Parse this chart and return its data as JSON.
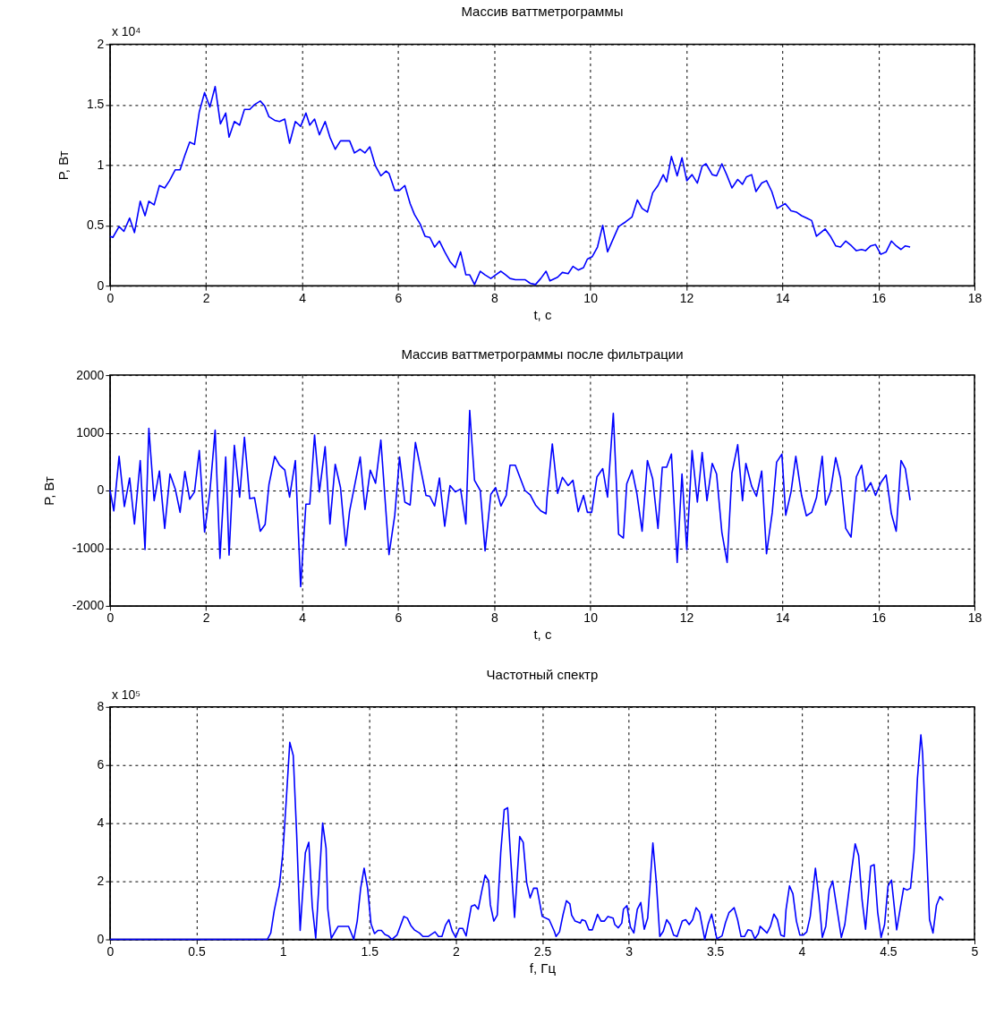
{
  "chart_data": [
    {
      "type": "line",
      "title": "Массив ваттметрограммы",
      "xlabel": "t, с",
      "ylabel": "P, Вт",
      "annotations": [
        "x 10⁴"
      ],
      "grid": true,
      "xlim": [
        0,
        18
      ],
      "xticks": [
        0,
        2,
        4,
        6,
        8,
        10,
        12,
        14,
        16,
        18
      ],
      "ylim": [
        0,
        2
      ],
      "yticks": [
        0,
        0.5,
        1,
        1.5,
        2
      ],
      "x": [
        0,
        0.06,
        0.19,
        0.29,
        0.41,
        0.51,
        0.63,
        0.73,
        0.81,
        0.92,
        1.03,
        1.14,
        1.24,
        1.36,
        1.46,
        1.56,
        1.66,
        1.76,
        1.86,
        1.97,
        2.08,
        2.19,
        2.3,
        2.41,
        2.48,
        2.59,
        2.7,
        2.8,
        2.91,
        3.01,
        3.13,
        3.22,
        3.31,
        3.43,
        3.53,
        3.64,
        3.74,
        3.86,
        3.97,
        4.08,
        4.16,
        4.26,
        4.36,
        4.48,
        4.58,
        4.69,
        4.8,
        4.99,
        5.09,
        5.21,
        5.31,
        5.41,
        5.53,
        5.64,
        5.75,
        5.81,
        5.93,
        6.03,
        6.14,
        6.25,
        6.34,
        6.46,
        6.56,
        6.66,
        6.76,
        6.86,
        6.97,
        7.08,
        7.19,
        7.3,
        7.41,
        7.49,
        7.59,
        7.71,
        7.81,
        7.93,
        8.03,
        8.14,
        8.24,
        8.33,
        8.44,
        8.64,
        8.75,
        8.86,
        8.97,
        9.08,
        9.16,
        9.32,
        9.42,
        9.54,
        9.64,
        9.75,
        9.86,
        9.94,
        10.04,
        10.15,
        10.26,
        10.36,
        10.48,
        10.59,
        10.74,
        10.87,
        10.98,
        11.08,
        11.19,
        11.3,
        11.41,
        11.52,
        11.59,
        11.69,
        11.81,
        11.91,
        12.01,
        12.12,
        12.23,
        12.33,
        12.41,
        12.54,
        12.63,
        12.74,
        12.84,
        12.95,
        13.07,
        13.17,
        13.25,
        13.36,
        13.45,
        13.57,
        13.67,
        13.78,
        13.89,
        14.06,
        14.18,
        14.29,
        14.4,
        14.51,
        14.61,
        14.71,
        14.89,
        15.0,
        15.11,
        15.21,
        15.32,
        15.44,
        15.54,
        15.65,
        15.73,
        15.84,
        15.94,
        16.05,
        16.16,
        16.27,
        16.37,
        16.47,
        16.56,
        16.66
      ],
      "series": [
        {
          "color": "#0000ff",
          "values": [
            0.41,
            0.4,
            0.49,
            0.45,
            0.56,
            0.44,
            0.7,
            0.58,
            0.7,
            0.67,
            0.83,
            0.81,
            0.87,
            0.96,
            0.96,
            1.08,
            1.19,
            1.17,
            1.44,
            1.6,
            1.48,
            1.65,
            1.34,
            1.43,
            1.23,
            1.36,
            1.33,
            1.46,
            1.46,
            1.5,
            1.53,
            1.49,
            1.4,
            1.37,
            1.36,
            1.38,
            1.18,
            1.36,
            1.32,
            1.43,
            1.33,
            1.38,
            1.25,
            1.36,
            1.23,
            1.13,
            1.2,
            1.2,
            1.1,
            1.13,
            1.1,
            1.15,
            0.99,
            0.91,
            0.95,
            0.93,
            0.79,
            0.79,
            0.83,
            0.68,
            0.59,
            0.51,
            0.41,
            0.4,
            0.32,
            0.37,
            0.28,
            0.2,
            0.15,
            0.28,
            0.09,
            0.09,
            0.01,
            0.12,
            0.09,
            0.06,
            0.09,
            0.12,
            0.09,
            0.06,
            0.05,
            0.05,
            0.02,
            0.01,
            0.06,
            0.12,
            0.04,
            0.07,
            0.11,
            0.1,
            0.16,
            0.13,
            0.15,
            0.22,
            0.24,
            0.32,
            0.5,
            0.28,
            0.39,
            0.49,
            0.53,
            0.57,
            0.71,
            0.64,
            0.61,
            0.77,
            0.83,
            0.92,
            0.86,
            1.07,
            0.91,
            1.06,
            0.87,
            0.92,
            0.85,
            0.99,
            1.01,
            0.92,
            0.91,
            1.01,
            0.92,
            0.81,
            0.88,
            0.84,
            0.9,
            0.92,
            0.78,
            0.85,
            0.87,
            0.78,
            0.64,
            0.68,
            0.62,
            0.61,
            0.58,
            0.56,
            0.54,
            0.41,
            0.47,
            0.41,
            0.33,
            0.32,
            0.37,
            0.33,
            0.29,
            0.3,
            0.29,
            0.33,
            0.34,
            0.26,
            0.28,
            0.37,
            0.33,
            0.3,
            0.33,
            0.32
          ]
        }
      ]
    },
    {
      "type": "line",
      "title": "Массив ваттметрограммы после фильтрации",
      "xlabel": "t, с",
      "ylabel": "P, Вт",
      "grid": true,
      "xlim": [
        0,
        18
      ],
      "xticks": [
        0,
        2,
        4,
        6,
        8,
        10,
        12,
        14,
        16,
        18
      ],
      "ylim": [
        -2000,
        2000
      ],
      "yticks": [
        -2000,
        -1000,
        0,
        1000,
        2000
      ],
      "x": [
        0,
        0.08,
        0.19,
        0.3,
        0.41,
        0.51,
        0.63,
        0.73,
        0.81,
        0.92,
        1.03,
        1.14,
        1.25,
        1.36,
        1.46,
        1.56,
        1.66,
        1.76,
        1.86,
        1.97,
        2.08,
        2.19,
        2.29,
        2.41,
        2.48,
        2.59,
        2.7,
        2.8,
        2.91,
        3.01,
        3.13,
        3.23,
        3.31,
        3.43,
        3.53,
        3.64,
        3.74,
        3.86,
        3.97,
        4.08,
        4.16,
        4.26,
        4.36,
        4.48,
        4.58,
        4.69,
        4.8,
        4.91,
        4.99,
        5.21,
        5.31,
        5.42,
        5.53,
        5.64,
        5.81,
        5.93,
        6.03,
        6.14,
        6.25,
        6.36,
        6.58,
        6.66,
        6.76,
        6.86,
        6.97,
        7.08,
        7.19,
        7.3,
        7.41,
        7.49,
        7.59,
        7.71,
        7.81,
        7.93,
        8.03,
        8.14,
        8.25,
        8.33,
        8.44,
        8.64,
        8.75,
        8.86,
        8.97,
        9.08,
        9.1,
        9.21,
        9.32,
        9.42,
        9.54,
        9.64,
        9.75,
        9.86,
        9.94,
        10.03,
        10.14,
        10.26,
        10.36,
        10.48,
        10.59,
        10.69,
        10.76,
        10.87,
        10.97,
        11.08,
        11.19,
        11.3,
        11.41,
        11.5,
        11.59,
        11.69,
        11.81,
        11.91,
        12.01,
        12.12,
        12.23,
        12.33,
        12.43,
        12.54,
        12.63,
        12.74,
        12.85,
        12.95,
        13.07,
        13.17,
        13.24,
        13.36,
        13.46,
        13.57,
        13.67,
        13.79,
        13.88,
        13.99,
        14.07,
        14.18,
        14.28,
        14.4,
        14.5,
        14.61,
        14.71,
        14.83,
        14.9,
        15.0,
        15.11,
        15.21,
        15.32,
        15.43,
        15.54,
        15.65,
        15.73,
        15.84,
        15.94,
        16.05,
        16.16,
        16.27,
        16.37,
        16.47,
        16.56,
        16.66
      ],
      "series": [
        {
          "color": "#0000ff",
          "values": [
            15,
            -354,
            591,
            -278,
            217,
            -581,
            520,
            -1025,
            1076,
            -177,
            338,
            -657,
            288,
            25,
            -379,
            328,
            -152,
            -25,
            692,
            -722,
            -25,
            1045,
            -1177,
            581,
            -1121,
            783,
            -116,
            924,
            -141,
            -126,
            -707,
            -591,
            101,
            591,
            439,
            354,
            -116,
            520,
            -1667,
            -237,
            -237,
            960,
            -25,
            758,
            -581,
            455,
            50,
            -960,
            -354,
            581,
            -328,
            354,
            126,
            874,
            -1111,
            -429,
            581,
            -202,
            -252,
            833,
            -86,
            -101,
            -268,
            217,
            -621,
            86,
            -25,
            25,
            -581,
            1389,
            177,
            0,
            -1045,
            -66,
            50,
            -268,
            -86,
            439,
            439,
            0,
            -76,
            -252,
            -354,
            -404,
            -126,
            808,
            -50,
            227,
            86,
            177,
            -369,
            -86,
            -379,
            -379,
            237,
            379,
            -116,
            1338,
            -758,
            -823,
            116,
            354,
            -50,
            -707,
            520,
            202,
            -657,
            404,
            404,
            631,
            -1247,
            288,
            -1025,
            692,
            -202,
            657,
            -177,
            470,
            288,
            -722,
            -1247,
            303,
            793,
            -177,
            470,
            76,
            -101,
            338,
            -1096,
            -379,
            490,
            631,
            -429,
            -25,
            591,
            -86,
            -439,
            -379,
            -126,
            591,
            -252,
            -25,
            571,
            217,
            -657,
            -808,
            237,
            439,
            -15,
            136,
            -86,
            136,
            268,
            -404,
            -707,
            520,
            379,
            -167
          ]
        }
      ]
    },
    {
      "type": "line",
      "title": "Частотный спектр",
      "xlabel": "f, Гц",
      "annotations": [
        "x 10⁵"
      ],
      "grid": true,
      "xlim": [
        0,
        5
      ],
      "xticks": [
        0,
        0.5,
        1,
        1.5,
        2,
        2.5,
        3,
        3.5,
        4,
        4.5,
        5
      ],
      "ylim": [
        0,
        8
      ],
      "yticks": [
        0,
        2,
        4,
        6,
        8
      ],
      "x": [
        0,
        0.91,
        0.93,
        0.95,
        0.98,
        1.0,
        1.02,
        1.04,
        1.06,
        1.08,
        1.1,
        1.13,
        1.15,
        1.17,
        1.19,
        1.23,
        1.25,
        1.26,
        1.28,
        1.32,
        1.38,
        1.41,
        1.43,
        1.45,
        1.47,
        1.49,
        1.51,
        1.53,
        1.55,
        1.57,
        1.59,
        1.61,
        1.63,
        1.66,
        1.7,
        1.72,
        1.74,
        1.76,
        1.79,
        1.81,
        1.84,
        1.88,
        1.9,
        1.92,
        1.94,
        1.96,
        1.98,
        2.0,
        2.02,
        2.04,
        2.06,
        2.07,
        2.09,
        2.11,
        2.13,
        2.15,
        2.17,
        2.19,
        2.2,
        2.22,
        2.24,
        2.26,
        2.28,
        2.3,
        2.32,
        2.34,
        2.37,
        2.39,
        2.41,
        2.43,
        2.45,
        2.47,
        2.5,
        2.54,
        2.57,
        2.58,
        2.6,
        2.62,
        2.64,
        2.66,
        2.67,
        2.69,
        2.72,
        2.73,
        2.75,
        2.77,
        2.79,
        2.82,
        2.84,
        2.86,
        2.88,
        2.91,
        2.92,
        2.94,
        2.96,
        2.97,
        2.99,
        3.01,
        3.03,
        3.05,
        3.07,
        3.09,
        3.11,
        3.14,
        3.16,
        3.18,
        3.2,
        3.22,
        3.24,
        3.26,
        3.28,
        3.31,
        3.33,
        3.35,
        3.37,
        3.39,
        3.41,
        3.44,
        3.46,
        3.48,
        3.51,
        3.54,
        3.56,
        3.58,
        3.61,
        3.63,
        3.65,
        3.67,
        3.69,
        3.71,
        3.73,
        3.75,
        3.76,
        3.8,
        3.82,
        3.84,
        3.86,
        3.88,
        3.9,
        3.91,
        3.93,
        3.95,
        3.97,
        3.99,
        4.01,
        4.03,
        4.05,
        4.08,
        4.1,
        4.12,
        4.14,
        4.16,
        4.18,
        4.23,
        4.25,
        4.28,
        4.31,
        4.33,
        4.35,
        4.37,
        4.4,
        4.42,
        4.44,
        4.46,
        4.48,
        4.5,
        4.52,
        4.55,
        4.59,
        4.61,
        4.63,
        4.65,
        4.67,
        4.69,
        4.7,
        4.72,
        4.74,
        4.76,
        4.78,
        4.8,
        4.82
      ],
      "series": [
        {
          "color": "#0000ff",
          "values": [
            0,
            0,
            0.22,
            0.99,
            1.86,
            2.98,
            4.82,
            6.78,
            6.33,
            3.59,
            0.31,
            2.98,
            3.34,
            1.14,
            0.04,
            4.0,
            3.13,
            1.04,
            0.04,
            0.45,
            0.45,
            0,
            0.63,
            1.76,
            2.45,
            1.76,
            0.53,
            0.2,
            0.31,
            0.31,
            0.17,
            0.12,
            0,
            0.15,
            0.79,
            0.73,
            0.48,
            0.33,
            0.22,
            0.1,
            0.1,
            0.26,
            0.1,
            0.1,
            0.48,
            0.68,
            0.28,
            0.07,
            0.38,
            0.38,
            0.12,
            0.48,
            1.14,
            1.19,
            1.04,
            1.65,
            2.21,
            2.01,
            1.19,
            0.63,
            0.84,
            2.98,
            4.46,
            4.53,
            2.57,
            0.76,
            3.54,
            3.34,
            1.96,
            1.43,
            1.76,
            1.76,
            0.79,
            0.68,
            0.28,
            0.1,
            0.26,
            0.84,
            1.33,
            1.22,
            0.84,
            0.63,
            0.56,
            0.68,
            0.63,
            0.33,
            0.33,
            0.86,
            0.63,
            0.63,
            0.79,
            0.73,
            0.51,
            0.4,
            0.56,
            1.04,
            1.16,
            0.43,
            0.22,
            1.04,
            1.27,
            0.35,
            0.73,
            3.32,
            1.96,
            0.1,
            0.28,
            0.68,
            0.51,
            0.15,
            0.1,
            0.63,
            0.68,
            0.51,
            0.68,
            1.09,
            0.94,
            0,
            0.53,
            0.87,
            0.02,
            0.12,
            0.58,
            0.92,
            1.09,
            0.68,
            0.1,
            0.1,
            0.33,
            0.3,
            0.02,
            0.2,
            0.45,
            0.22,
            0.45,
            0.87,
            0.68,
            0.15,
            0.1,
            1.02,
            1.84,
            1.57,
            0.63,
            0.15,
            0.15,
            0.26,
            0.79,
            2.45,
            1.43,
            0.07,
            0.45,
            1.7,
            2.01,
            0.07,
            0.51,
            1.96,
            3.29,
            2.88,
            1.35,
            0.35,
            2.52,
            2.57,
            0.94,
            0.07,
            0.51,
            1.84,
            2.04,
            0.33,
            1.76,
            1.7,
            1.76,
            2.98,
            5.53,
            7.04,
            6.4,
            3.49,
            0.68,
            0.22,
            1.17,
            1.47,
            1.35
          ]
        }
      ]
    }
  ]
}
